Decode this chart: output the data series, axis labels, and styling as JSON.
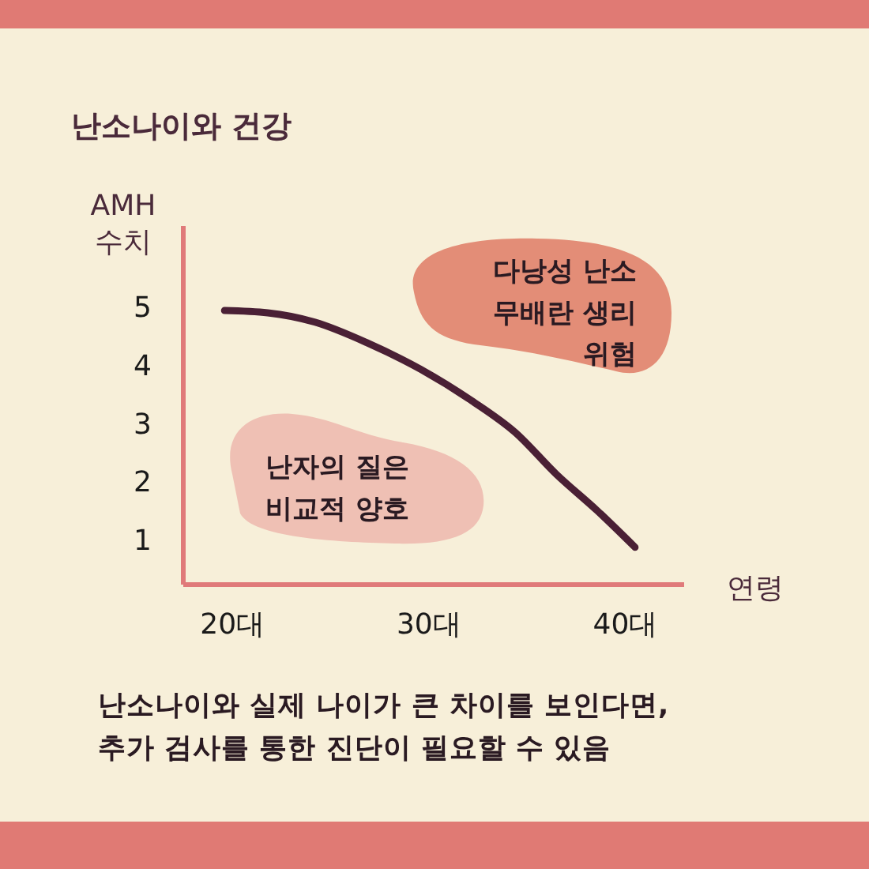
{
  "chart_data": {
    "type": "line",
    "title": "난소나이와 건강",
    "xlabel": "연령",
    "ylabel": "AMH\n수치",
    "x": [
      19.6,
      21.8,
      24.2,
      26.9,
      29.6,
      32.2,
      34.4,
      36.5,
      38.6,
      40.5
    ],
    "series": [
      {
        "color": "#4a2035",
        "values": [
          4.95,
          4.91,
          4.75,
          4.39,
          3.94,
          3.4,
          2.86,
          2.14,
          1.51,
          0.89
        ]
      }
    ],
    "xlim": [
      17.5,
      43
    ],
    "xticks": [
      {
        "value": 20,
        "label": "20대"
      },
      {
        "value": 30,
        "label": "30대"
      },
      {
        "value": 40,
        "label": "40대"
      }
    ],
    "ylim": [
      0.25,
      6.4
    ],
    "yticks": [
      1,
      2,
      3,
      4,
      5
    ],
    "grid": false,
    "marker": "none",
    "line_style": "solid",
    "annotations": [
      "다낭성 난소\n무배란 생리\n위험",
      "난자의 질은\n비교적 양호",
      "난소나이와 실제 나이가 큰 차이를 보인다면,\n추가 검사를 통한 진단이 필요할 수 있음"
    ]
  }
}
